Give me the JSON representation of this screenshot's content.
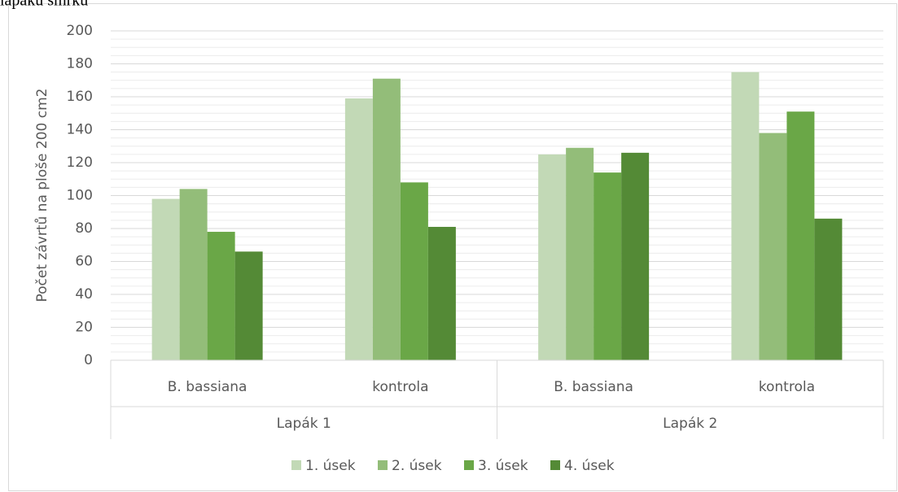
{
  "caption": "lapáku smrku",
  "chart_data": {
    "type": "bar",
    "y_label": "Počet závrtů na ploše 200 cm2",
    "categories": [
      "B. bassiana",
      "kontrola",
      "B. bassiana",
      "kontrola"
    ],
    "category_groups": [
      "Lapák 1",
      "Lapák 2"
    ],
    "series": [
      {
        "name": "1. úsek",
        "color": "#c2d9b6",
        "values": [
          98,
          159,
          125,
          175
        ]
      },
      {
        "name": "2. úsek",
        "color": "#93bd79",
        "values": [
          104,
          171,
          129,
          138
        ]
      },
      {
        "name": "3. úsek",
        "color": "#6aa747",
        "values": [
          78,
          108,
          114,
          151
        ]
      },
      {
        "name": "4. úsek",
        "color": "#548a36",
        "values": [
          66,
          81,
          126,
          86
        ]
      }
    ],
    "ylim": [
      0,
      200
    ],
    "yticks": [
      0,
      20,
      40,
      60,
      80,
      100,
      120,
      140,
      160,
      180,
      200
    ],
    "grid": true,
    "minor_grid": true,
    "legend": "bottom"
  }
}
